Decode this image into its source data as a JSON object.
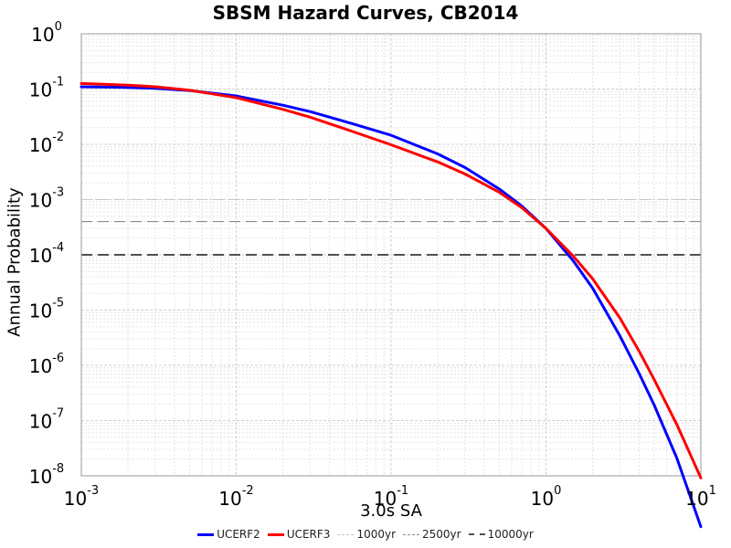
{
  "chart_data": {
    "type": "line",
    "title": "SBSM Hazard Curves, CB2014",
    "xlabel": "3.0s SA",
    "ylabel": "Annual Probability",
    "x_scale": "log",
    "y_scale": "log",
    "xlim": [
      0.001,
      10
    ],
    "ylim": [
      1e-08,
      1
    ],
    "x_ticks": [
      {
        "base": "10",
        "exp": "-3",
        "value": 0.001
      },
      {
        "base": "10",
        "exp": "-2",
        "value": 0.01
      },
      {
        "base": "10",
        "exp": "-1",
        "value": 0.1
      },
      {
        "base": "10",
        "exp": "0",
        "value": 1
      },
      {
        "base": "10",
        "exp": "1",
        "value": 10
      }
    ],
    "y_ticks": [
      {
        "base": "10",
        "exp": "0",
        "value": 1
      },
      {
        "base": "10",
        "exp": "-1",
        "value": 0.1
      },
      {
        "base": "10",
        "exp": "-2",
        "value": 0.01
      },
      {
        "base": "10",
        "exp": "-3",
        "value": 0.001
      },
      {
        "base": "10",
        "exp": "-4",
        "value": 0.0001
      },
      {
        "base": "10",
        "exp": "-5",
        "value": 1e-05
      },
      {
        "base": "10",
        "exp": "-6",
        "value": 1e-06
      },
      {
        "base": "10",
        "exp": "-7",
        "value": 1e-07
      },
      {
        "base": "10",
        "exp": "-8",
        "value": 1e-08
      }
    ],
    "grid": true,
    "legend_position": "bottom-center",
    "series": [
      {
        "name": "UCERF2",
        "color": "#0000ff",
        "x": [
          0.001,
          0.002,
          0.003,
          0.005,
          0.01,
          0.02,
          0.03,
          0.05,
          0.1,
          0.2,
          0.3,
          0.5,
          0.7,
          1.0,
          1.5,
          2.0,
          3.0,
          4.0,
          5.0,
          7.0,
          10.0
        ],
        "y": [
          0.11,
          0.107,
          0.103,
          0.094,
          0.075,
          0.051,
          0.039,
          0.026,
          0.0146,
          0.0067,
          0.0038,
          0.00155,
          0.00076,
          0.0003,
          7.8e-05,
          2.5e-05,
          3.4e-06,
          7.1e-07,
          1.9e-07,
          2.1e-08,
          1.2e-09
        ]
      },
      {
        "name": "UCERF3",
        "color": "#ff0000",
        "x": [
          0.001,
          0.002,
          0.003,
          0.005,
          0.01,
          0.02,
          0.03,
          0.05,
          0.1,
          0.2,
          0.3,
          0.5,
          0.7,
          1.0,
          1.5,
          2.0,
          3.0,
          4.0,
          5.0,
          7.0,
          10.0
        ],
        "y": [
          0.126,
          0.118,
          0.11,
          0.095,
          0.07,
          0.043,
          0.031,
          0.0192,
          0.0098,
          0.0048,
          0.0029,
          0.00135,
          0.00071,
          0.0003,
          9.5e-05,
          3.7e-05,
          7.2e-06,
          1.8e-06,
          5.5e-07,
          8.5e-08,
          9.2e-09
        ]
      }
    ],
    "reference_lines": [
      {
        "name": "1000yr",
        "y": 0.001,
        "color": "#c8c8c8"
      },
      {
        "name": "2500yr",
        "y": 0.0004,
        "color": "#8c8c8c"
      },
      {
        "name": "10000yr",
        "y": 0.0001,
        "color": "#505050"
      }
    ]
  }
}
